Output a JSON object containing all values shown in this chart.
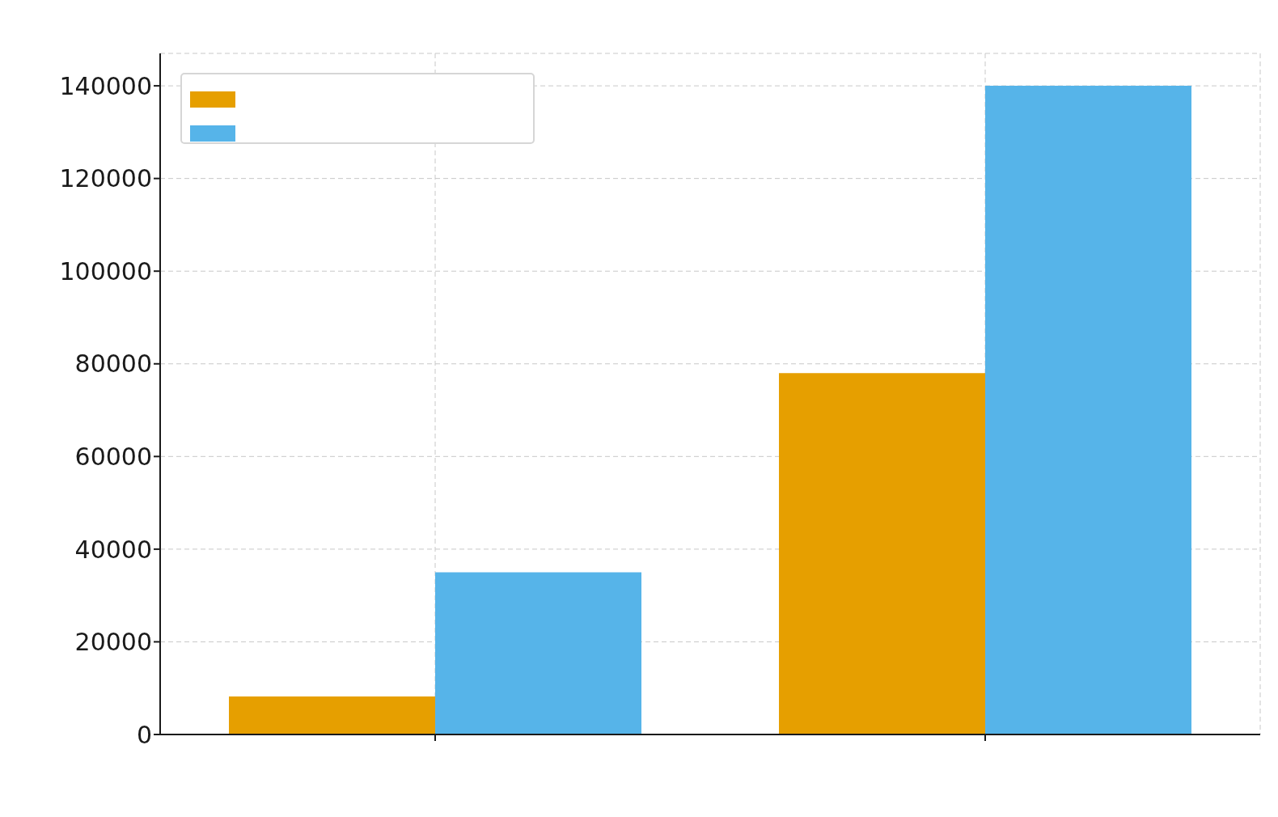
{
  "chart_data": {
    "type": "bar",
    "categories": [
      null,
      null
    ],
    "series": [
      {
        "color": "#e69f00",
        "values": [
          8200,
          78000
        ]
      },
      {
        "color": "#56b4e9",
        "values": [
          35000,
          140000
        ]
      }
    ],
    "ylim": [
      0,
      147000
    ],
    "yticks": [
      0,
      20000,
      40000,
      60000,
      80000,
      100000,
      120000,
      140000
    ],
    "grid": true
  }
}
